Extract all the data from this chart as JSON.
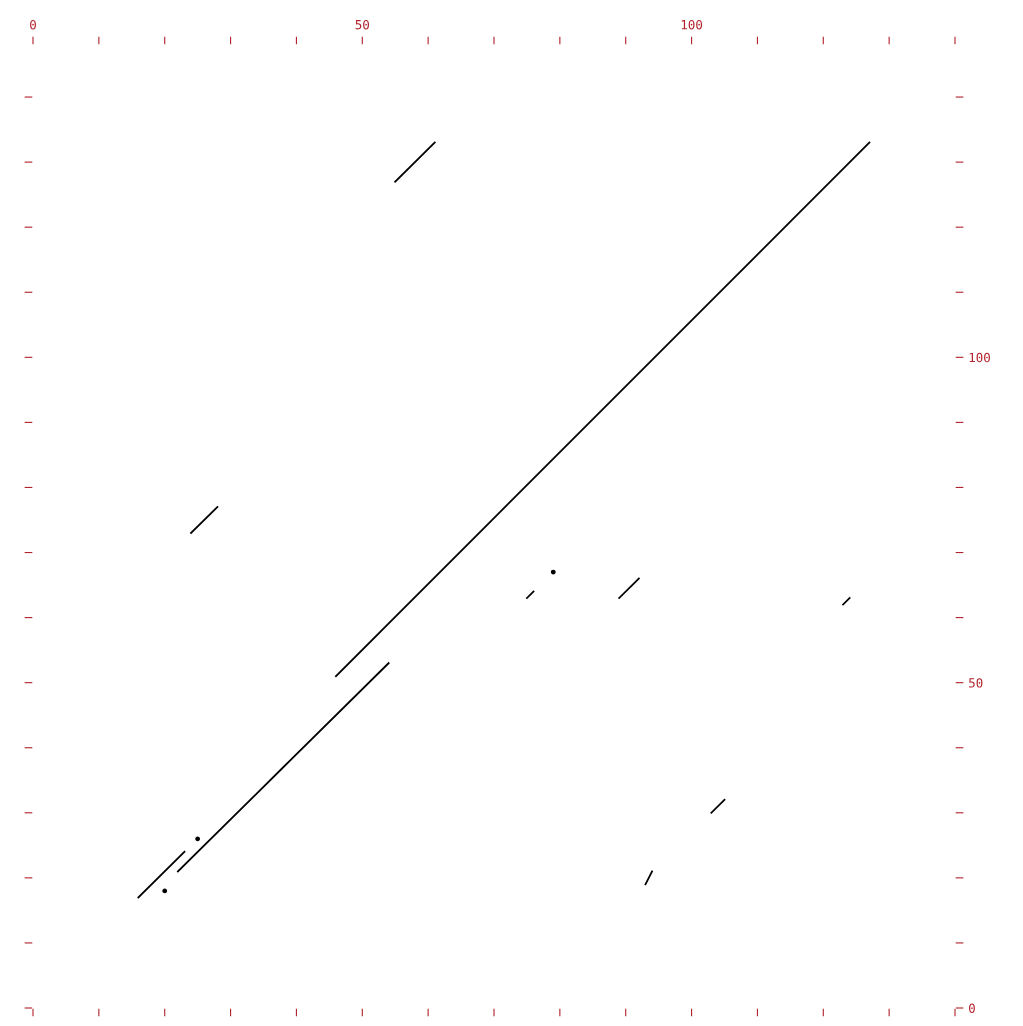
{
  "chart_data": {
    "type": "line",
    "xlim": [
      0,
      140
    ],
    "ylim": [
      0,
      148
    ],
    "xticks": [
      0,
      {
        "value": 10,
        "label": null
      },
      {
        "value": 20,
        "label": null
      },
      {
        "value": 30,
        "label": null
      },
      {
        "value": 40,
        "label": null
      },
      50,
      {
        "value": 60,
        "label": null
      },
      {
        "value": 70,
        "label": null
      },
      {
        "value": 80,
        "label": null
      },
      {
        "value": 90,
        "label": null
      },
      100,
      {
        "value": 110,
        "label": null
      },
      {
        "value": 120,
        "label": null
      },
      {
        "value": 130,
        "label": null
      },
      {
        "value": 140,
        "label": null
      }
    ],
    "yticks": [
      0,
      {
        "value": 10,
        "label": null
      },
      {
        "value": 20,
        "label": null
      },
      {
        "value": 30,
        "label": null
      },
      {
        "value": 40,
        "label": null
      },
      50,
      {
        "value": 60,
        "label": null
      },
      {
        "value": 70,
        "label": null
      },
      {
        "value": 80,
        "label": null
      },
      {
        "value": 90,
        "label": null
      },
      100,
      {
        "value": 110,
        "label": null
      },
      {
        "value": 120,
        "label": null
      },
      {
        "value": 130,
        "label": null
      },
      {
        "value": 140,
        "label": null
      }
    ],
    "grid": false,
    "legend": false,
    "marker": "none",
    "line_style": "solid",
    "series": [
      {
        "color": "#000000",
        "x": [
          46,
          127
        ],
        "values": [
          51,
          133
        ]
      },
      {
        "color": "#000000",
        "x": [
          55,
          61
        ],
        "values": [
          127,
          133
        ]
      },
      {
        "color": "#000000",
        "x": [
          24,
          28
        ],
        "values": [
          73,
          77
        ]
      },
      {
        "color": "#000000",
        "x": [
          22,
          38,
          54
        ],
        "values": [
          21,
          37,
          53
        ]
      },
      {
        "color": "#000000",
        "x": [
          16,
          23
        ],
        "values": [
          17,
          24
        ]
      },
      {
        "color": "#000000",
        "x": [
          75,
          76
        ],
        "values": [
          63,
          64
        ]
      },
      {
        "color": "#000000",
        "x": [
          89,
          92
        ],
        "values": [
          63,
          66
        ]
      },
      {
        "color": "#000000",
        "x": [
          123,
          124
        ],
        "values": [
          62,
          63
        ]
      },
      {
        "color": "#000000",
        "x": [
          103,
          105
        ],
        "values": [
          30,
          32
        ]
      },
      {
        "color": "#000000",
        "x": [
          93,
          94
        ],
        "values": [
          19,
          21
        ]
      },
      {
        "type": "scatter",
        "marker": "circle",
        "color": "#000000",
        "x": [
          20,
          25,
          79
        ],
        "values": [
          18,
          26,
          67
        ]
      }
    ]
  }
}
